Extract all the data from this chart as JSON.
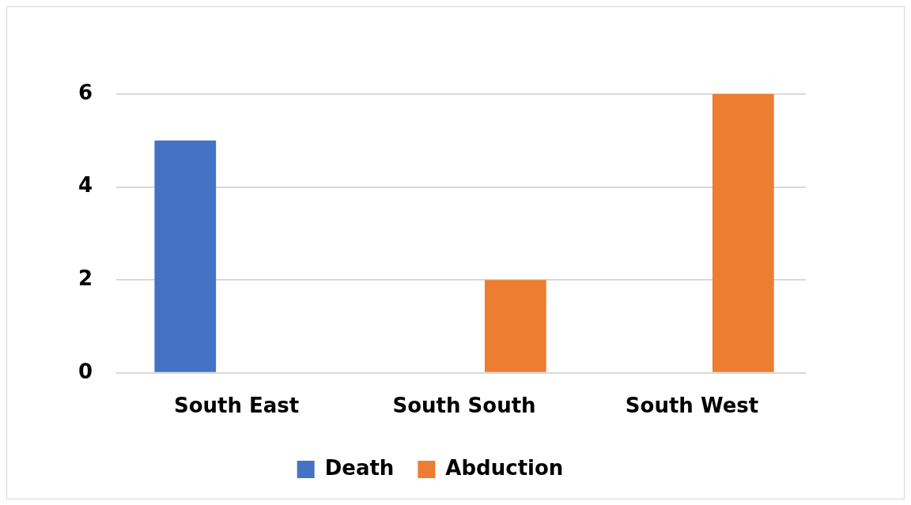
{
  "chart_data": {
    "type": "bar",
    "categories": [
      "South East",
      "South South",
      "South West"
    ],
    "series": [
      {
        "name": "Death",
        "color": "#4472c4",
        "values": [
          5,
          0,
          0
        ]
      },
      {
        "name": "Abduction",
        "color": "#ed7d31",
        "values": [
          0,
          2,
          6
        ]
      }
    ],
    "ylim": [
      0,
      6
    ],
    "yticks": [
      0,
      2,
      4,
      6
    ],
    "grid": "y",
    "legend": "bottom"
  }
}
